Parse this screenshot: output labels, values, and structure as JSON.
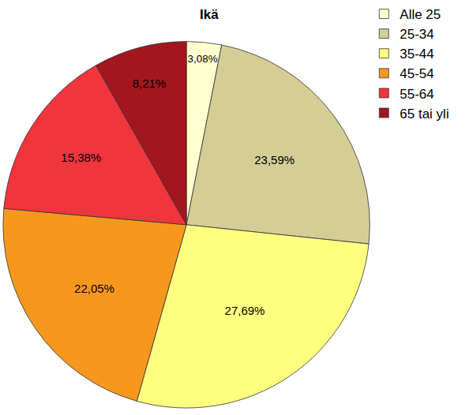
{
  "chart_data": {
    "type": "pie",
    "title": "Ikä",
    "categories": [
      "Alle 25",
      "25-34",
      "35-44",
      "45-54",
      "55-64",
      "65 tai yli"
    ],
    "values": [
      3.08,
      23.59,
      27.69,
      22.05,
      15.38,
      8.21
    ],
    "value_labels": [
      "3,08%",
      "23,59%",
      "27,69%",
      "22,05%",
      "15,38%",
      "8,21%"
    ],
    "colors": [
      "#FFFFD0",
      "#D4CD96",
      "#FFFF80",
      "#F7981E",
      "#F0353D",
      "#A3161E"
    ],
    "data_labels": true,
    "legend": "top right"
  }
}
